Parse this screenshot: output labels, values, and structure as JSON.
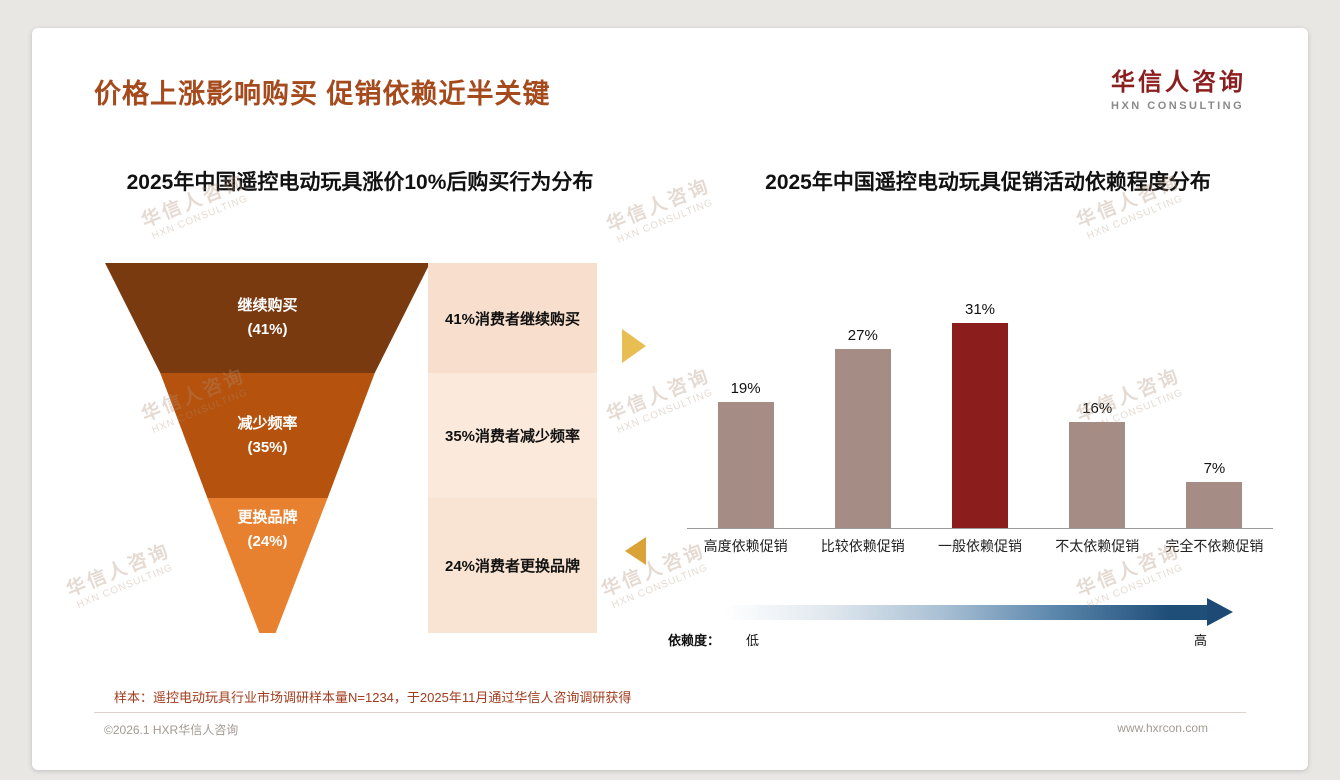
{
  "page": {
    "title": "价格上涨影响购买 促销依赖近半关键",
    "logo": {
      "name": "华信人咨询",
      "sub": "HXN CONSULTING"
    },
    "watermark": {
      "line1": "华信人咨询",
      "line2": "HXN CONSULTING"
    },
    "footnote": "样本：遥控电动玩具行业市场调研样本量N=1234，于2025年11月通过华信人咨询调研获得",
    "copyright": "©2026.1 HXR华信人咨询",
    "website": "www.hxrcon.com"
  },
  "chart_data": [
    {
      "type": "funnel",
      "title": "2025年中国遥控电动玩具涨价10%后购买行为分布",
      "segments": [
        {
          "label": "继续购买",
          "value": 41,
          "value_label": "(41%)",
          "desc": "41%消费者继续购买",
          "color": "#7a3a10"
        },
        {
          "label": "减少频率",
          "value": 35,
          "value_label": "(35%)",
          "desc": "35%消费者减少频率",
          "color": "#b4520e"
        },
        {
          "label": "更换品牌",
          "value": 24,
          "value_label": "(24%)",
          "desc": "24%消费者更换品牌",
          "color": "#e8812f"
        }
      ],
      "panel_colors": [
        "#f8dfcd",
        "#fbe9db",
        "#f9e3d2"
      ]
    },
    {
      "type": "bar",
      "title": "2025年中国遥控电动玩具促销活动依赖程度分布",
      "categories": [
        "高度依赖促销",
        "比较依赖促销",
        "一般依赖促销",
        "不太依赖促销",
        "完全不依赖促销"
      ],
      "values": [
        19,
        27,
        31,
        16,
        7
      ],
      "value_labels": [
        "19%",
        "27%",
        "31%",
        "16%",
        "7%"
      ],
      "ylim": [
        0,
        35
      ],
      "grid": false,
      "bar_color": "#a58c85",
      "highlight_index": 2,
      "highlight_color": "#8b1d1d",
      "axis": {
        "label": "依赖度：",
        "low": "低",
        "high": "高"
      }
    }
  ]
}
